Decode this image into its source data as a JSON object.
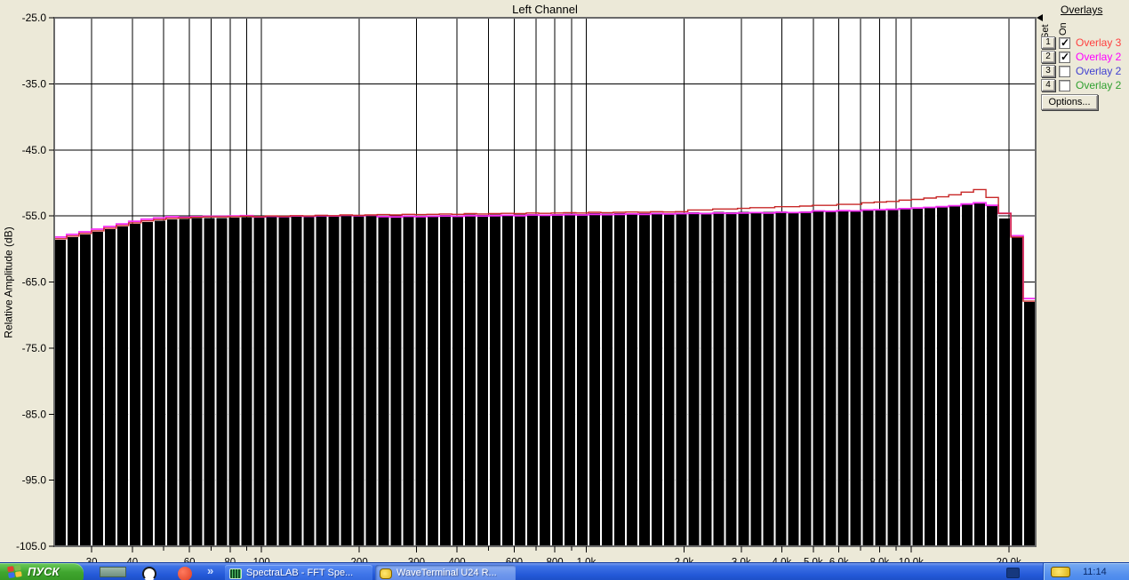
{
  "window": {
    "plot_title": "Left Channel",
    "y_axis_title": "Relative Amplitude (dB)"
  },
  "chart_data": {
    "type": "bar",
    "title": "Left Channel",
    "ylabel": "Relative Amplitude (dB)",
    "ylim": [
      -105,
      -25
    ],
    "y_ticks": [
      {
        "db": -25,
        "label": "-25.0"
      },
      {
        "db": -35,
        "label": "-35.0"
      },
      {
        "db": -45,
        "label": "-45.0"
      },
      {
        "db": -55,
        "label": "-55.0"
      },
      {
        "db": -65,
        "label": "-65.0"
      },
      {
        "db": -75,
        "label": "-75.0"
      },
      {
        "db": -85,
        "label": "-85.0"
      },
      {
        "db": -95,
        "label": "-95.0"
      },
      {
        "db": -105,
        "label": "-105.0"
      }
    ],
    "x_scale": "log",
    "x_range_hz": [
      23,
      24200
    ],
    "x_gridlines_hz": [
      30,
      40,
      50,
      60,
      70,
      80,
      90,
      100,
      200,
      300,
      400,
      500,
      600,
      700,
      800,
      900,
      1000,
      2000,
      3000,
      4000,
      5000,
      6000,
      7000,
      8000,
      9000,
      10000,
      20000
    ],
    "x_ticks": [
      {
        "f": 30,
        "label": "30"
      },
      {
        "f": 40,
        "label": "40"
      },
      {
        "f": 60,
        "label": "60"
      },
      {
        "f": 80,
        "label": "80"
      },
      {
        "f": 100,
        "label": "100"
      },
      {
        "f": 200,
        "label": "200"
      },
      {
        "f": 300,
        "label": "300"
      },
      {
        "f": 400,
        "label": "400"
      },
      {
        "f": 600,
        "label": "600"
      },
      {
        "f": 800,
        "label": "800"
      },
      {
        "f": 1000,
        "label": "1.0k"
      },
      {
        "f": 2000,
        "label": "2.0k"
      },
      {
        "f": 3000,
        "label": "3.0k"
      },
      {
        "f": 4000,
        "label": "4.0k"
      },
      {
        "f": 5000,
        "label": "5.0k"
      },
      {
        "f": 6000,
        "label": "6.0k"
      },
      {
        "f": 8000,
        "label": "8.0k"
      },
      {
        "f": 10000,
        "label": "10.0k"
      },
      {
        "f": 20000,
        "label": "20.0k"
      }
    ],
    "grid": true,
    "bar_color": "#000000",
    "bars_db": [
      -58.6,
      -58.2,
      -57.8,
      -57.4,
      -57.0,
      -56.6,
      -56.2,
      -55.9,
      -55.7,
      -55.5,
      -55.45,
      -55.35,
      -55.3,
      -55.3,
      -55.25,
      -55.2,
      -55.25,
      -55.15,
      -55.2,
      -55.1,
      -55.15,
      -55.05,
      -55.1,
      -55.0,
      -55.05,
      -55.0,
      -54.95,
      -55.0,
      -54.9,
      -54.95,
      -54.9,
      -54.85,
      -54.9,
      -54.8,
      -54.85,
      -54.8,
      -54.75,
      -54.8,
      -54.7,
      -54.75,
      -54.7,
      -54.65,
      -54.7,
      -54.6,
      -54.65,
      -54.6,
      -54.55,
      -54.6,
      -54.5,
      -54.55,
      -54.5,
      -54.45,
      -54.5,
      -54.4,
      -54.45,
      -54.4,
      -54.35,
      -54.4,
      -54.3,
      -54.35,
      -54.3,
      -54.25,
      -54.3,
      -54.2,
      -54.25,
      -54.1,
      -54.05,
      -54.0,
      -53.9,
      -53.8,
      -53.7,
      -53.6,
      -53.45,
      -53.2,
      -53.0,
      -53.4,
      -55.4,
      -58.3,
      -68.0
    ],
    "series": [
      {
        "name": "Overlay 2",
        "color": "#F52FF5",
        "values": [
          -58.2,
          -57.8,
          -57.4,
          -57.0,
          -56.6,
          -56.2,
          -55.8,
          -55.5,
          -55.3,
          -55.1,
          -55.2,
          -55.1,
          -55.05,
          -55.05,
          -55.0,
          -54.95,
          -55.15,
          -55.05,
          -55.1,
          -55.0,
          -55.05,
          -54.95,
          -55.0,
          -54.9,
          -54.95,
          -54.9,
          -55.1,
          -55.15,
          -55.05,
          -55.1,
          -55.05,
          -55.0,
          -55.05,
          -54.95,
          -55.0,
          -54.95,
          -54.9,
          -54.95,
          -54.85,
          -54.9,
          -54.85,
          -54.8,
          -54.85,
          -54.75,
          -54.8,
          -54.75,
          -54.7,
          -54.75,
          -54.65,
          -54.7,
          -54.65,
          -54.6,
          -54.65,
          -54.55,
          -54.6,
          -54.55,
          -54.5,
          -54.55,
          -54.45,
          -54.5,
          -54.45,
          -54.25,
          -54.3,
          -54.2,
          -54.25,
          -54.1,
          -54.05,
          -54.0,
          -53.9,
          -53.8,
          -53.7,
          -53.6,
          -53.45,
          -53.2,
          -53.0,
          -53.4,
          -54.6,
          -58.0,
          -67.5
        ],
        "end_drop_db": -79.5
      },
      {
        "name": "Overlay 3",
        "color": "#C82828",
        "values": [
          -58.45,
          -58.05,
          -57.65,
          -57.25,
          -56.85,
          -56.45,
          -56.05,
          -55.75,
          -55.55,
          -55.35,
          -55.3,
          -55.2,
          -55.15,
          -55.15,
          -55.1,
          -55.05,
          -55.1,
          -55.0,
          -55.05,
          -54.95,
          -55.0,
          -54.9,
          -54.95,
          -54.85,
          -54.9,
          -54.85,
          -54.8,
          -54.85,
          -54.75,
          -54.8,
          -54.75,
          -54.7,
          -54.75,
          -54.65,
          -54.7,
          -54.65,
          -54.6,
          -54.65,
          -54.55,
          -54.6,
          -54.55,
          -54.5,
          -54.55,
          -54.45,
          -54.5,
          -54.45,
          -54.4,
          -54.45,
          -54.35,
          -54.4,
          -54.35,
          -54.1,
          -54.1,
          -53.95,
          -53.95,
          -53.85,
          -53.75,
          -53.75,
          -53.6,
          -53.6,
          -53.5,
          -53.4,
          -53.4,
          -53.25,
          -53.25,
          -53.0,
          -52.9,
          -52.8,
          -52.6,
          -52.5,
          -52.3,
          -52.1,
          -51.8,
          -51.4,
          -51.0,
          -52.2,
          -54.6,
          -58.2,
          -67.9
        ]
      }
    ]
  },
  "overlays_panel": {
    "title": "Overlays",
    "col_set": "Set",
    "col_on": "On",
    "rows": [
      {
        "set": "1",
        "checked": true,
        "label": "Overlay 3",
        "color": "#FF4040"
      },
      {
        "set": "2",
        "checked": true,
        "label": "Overlay 2",
        "color": "#FF00FF"
      },
      {
        "set": "3",
        "checked": false,
        "label": "Overlay 2",
        "color": "#4040D0"
      },
      {
        "set": "4",
        "checked": false,
        "label": "Overlay 2",
        "color": "#30A030"
      }
    ],
    "options_button": "Options...",
    "check_glyph": "✓"
  },
  "taskbar": {
    "start_label": "ПУСК",
    "overflow_chevron": "»",
    "quick_launch_icons": [
      "show-desktop-icon",
      "media-player-icon",
      "red-app-icon"
    ],
    "tasks": [
      {
        "label": "SpectraLAB - FFT Spe...",
        "icon": "spectra",
        "active": false
      },
      {
        "label": "WaveTerminal U24 R...",
        "icon": "wave",
        "active": true
      }
    ],
    "tray_icon": "wave-device-icon",
    "clock": "11:14"
  }
}
